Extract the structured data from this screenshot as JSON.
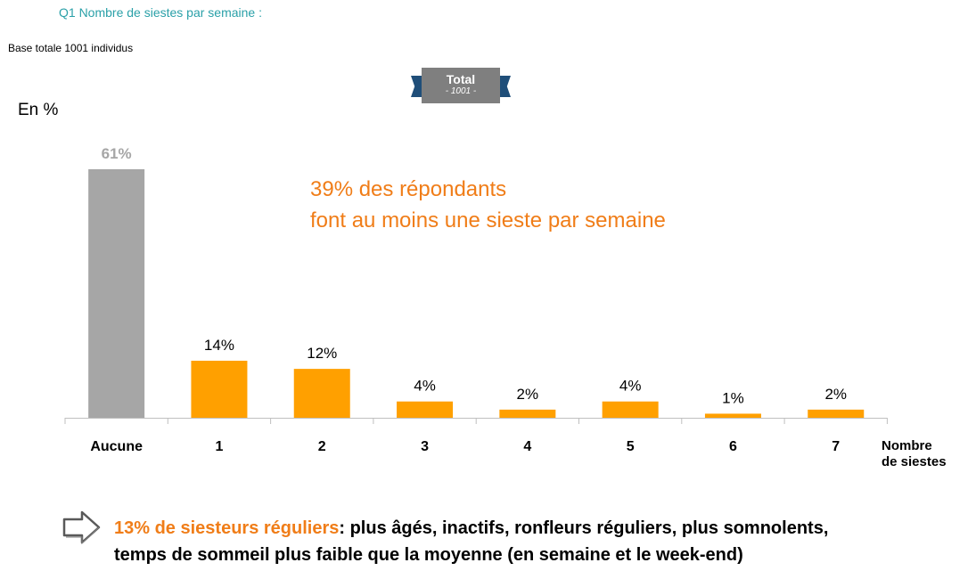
{
  "question": "Q1  Nombre de siestes par semaine :",
  "base": "Base totale 1001 individus",
  "y_unit": "En %",
  "badge": {
    "title": "Total",
    "subtitle": "- 1001 -"
  },
  "annotation": {
    "line1": "39% des répondants",
    "line2": "font au moins une sieste par semaine"
  },
  "colors": {
    "grey_bar": "#a6a6a6",
    "orange_bar": "#ffa000",
    "accent": "#f07d18",
    "teal": "#2aa0a8"
  },
  "chart_data": {
    "type": "bar",
    "categories": [
      "Aucune",
      "1",
      "2",
      "3",
      "4",
      "5",
      "6",
      "7"
    ],
    "values": [
      61,
      14,
      12,
      4,
      2,
      4,
      1,
      2
    ],
    "data_labels": [
      "61%",
      "14%",
      "12%",
      "4%",
      "2%",
      "4%",
      "1%",
      "2%"
    ],
    "bar_colors": [
      "#a6a6a6",
      "#ffa000",
      "#ffa000",
      "#ffa000",
      "#ffa000",
      "#ffa000",
      "#ffa000",
      "#ffa000"
    ],
    "xlabel_line1": "Nombre",
    "xlabel_line2": "de siestes",
    "ylabel": "En %",
    "ylim": [
      0,
      61
    ],
    "grid": false,
    "legend": "none"
  },
  "footer": {
    "highlight": "13% de siesteurs réguliers",
    "rest_line1": ": plus âgés, inactifs, ronfleurs réguliers, plus somnolents,",
    "line2": "temps de sommeil plus faible que la moyenne (en semaine et le week-end)"
  }
}
